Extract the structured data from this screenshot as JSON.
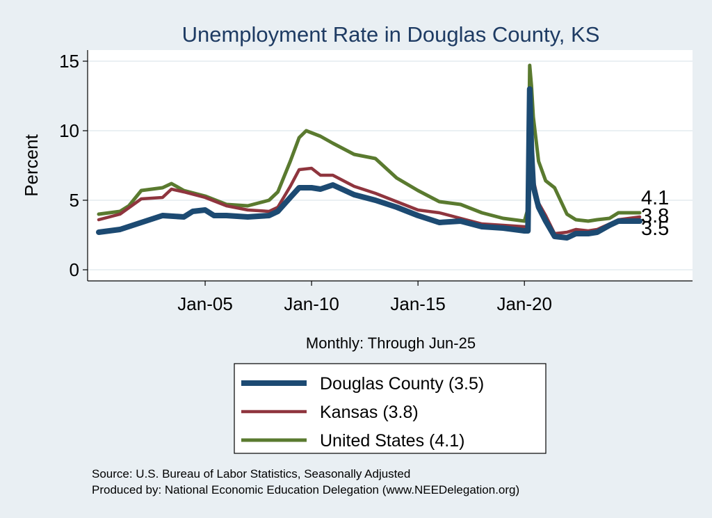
{
  "chart_data": {
    "type": "line",
    "title": "Unemployment Rate in Douglas  County, KS",
    "ylabel": "Percent",
    "xlabel": "Monthly: Through Jun-25",
    "ylim": [
      0,
      15
    ],
    "yticks": [
      "0",
      "5",
      "10",
      "15"
    ],
    "xticks": [
      {
        "date": "2005-01",
        "label": "Jan-05"
      },
      {
        "date": "2010-01",
        "label": "Jan-10"
      },
      {
        "date": "2015-01",
        "label": "Jan-15"
      },
      {
        "date": "2020-01",
        "label": "Jan-20"
      }
    ],
    "xrange": [
      "2000-01",
      "2025-06"
    ],
    "grid": true,
    "legend_position": "bottom",
    "series": [
      {
        "name": "Douglas  County (3.5)",
        "color": "#1c4a72",
        "end_label": "3.5",
        "points": [
          [
            "2000-01",
            2.7
          ],
          [
            "2001-01",
            2.9
          ],
          [
            "2002-01",
            3.4
          ],
          [
            "2003-01",
            3.9
          ],
          [
            "2004-01",
            3.8
          ],
          [
            "2004-06",
            4.2
          ],
          [
            "2005-01",
            4.3
          ],
          [
            "2005-06",
            3.9
          ],
          [
            "2006-01",
            3.9
          ],
          [
            "2007-01",
            3.8
          ],
          [
            "2008-01",
            3.9
          ],
          [
            "2008-06",
            4.2
          ],
          [
            "2009-01",
            5.2
          ],
          [
            "2009-06",
            5.9
          ],
          [
            "2010-01",
            5.9
          ],
          [
            "2010-06",
            5.8
          ],
          [
            "2011-01",
            6.1
          ],
          [
            "2012-01",
            5.4
          ],
          [
            "2013-01",
            5.0
          ],
          [
            "2014-01",
            4.5
          ],
          [
            "2015-01",
            3.9
          ],
          [
            "2016-01",
            3.4
          ],
          [
            "2017-01",
            3.5
          ],
          [
            "2018-01",
            3.1
          ],
          [
            "2019-01",
            3.0
          ],
          [
            "2020-01",
            2.8
          ],
          [
            "2020-03",
            2.8
          ],
          [
            "2020-04",
            13.0
          ],
          [
            "2020-05",
            8.5
          ],
          [
            "2020-06",
            6.0
          ],
          [
            "2020-09",
            4.5
          ],
          [
            "2021-01",
            3.5
          ],
          [
            "2021-06",
            2.4
          ],
          [
            "2022-01",
            2.3
          ],
          [
            "2022-06",
            2.6
          ],
          [
            "2023-01",
            2.6
          ],
          [
            "2023-06",
            2.7
          ],
          [
            "2024-01",
            3.2
          ],
          [
            "2024-06",
            3.5
          ],
          [
            "2025-06",
            3.5
          ]
        ]
      },
      {
        "name": "Kansas (3.8)",
        "color": "#8f353e",
        "end_label": "3.8",
        "points": [
          [
            "2000-01",
            3.6
          ],
          [
            "2001-01",
            4.0
          ],
          [
            "2002-01",
            5.1
          ],
          [
            "2003-01",
            5.2
          ],
          [
            "2003-06",
            5.8
          ],
          [
            "2004-01",
            5.6
          ],
          [
            "2005-01",
            5.2
          ],
          [
            "2006-01",
            4.6
          ],
          [
            "2007-01",
            4.3
          ],
          [
            "2008-01",
            4.2
          ],
          [
            "2008-06",
            4.5
          ],
          [
            "2009-01",
            6.0
          ],
          [
            "2009-06",
            7.2
          ],
          [
            "2010-01",
            7.3
          ],
          [
            "2010-06",
            6.8
          ],
          [
            "2011-01",
            6.8
          ],
          [
            "2012-01",
            6.0
          ],
          [
            "2013-01",
            5.5
          ],
          [
            "2014-01",
            4.9
          ],
          [
            "2015-01",
            4.3
          ],
          [
            "2016-01",
            4.1
          ],
          [
            "2017-01",
            3.7
          ],
          [
            "2018-01",
            3.3
          ],
          [
            "2019-01",
            3.2
          ],
          [
            "2020-01",
            3.1
          ],
          [
            "2020-03",
            3.1
          ],
          [
            "2020-04",
            11.2
          ],
          [
            "2020-05",
            8.0
          ],
          [
            "2020-06",
            6.5
          ],
          [
            "2020-09",
            4.8
          ],
          [
            "2021-01",
            3.9
          ],
          [
            "2021-06",
            2.6
          ],
          [
            "2022-01",
            2.7
          ],
          [
            "2022-06",
            2.9
          ],
          [
            "2023-01",
            2.8
          ],
          [
            "2023-06",
            2.9
          ],
          [
            "2024-01",
            3.3
          ],
          [
            "2024-06",
            3.6
          ],
          [
            "2025-06",
            3.8
          ]
        ]
      },
      {
        "name": "United States (4.1)",
        "color": "#5a7a2f",
        "end_label": "4.1",
        "points": [
          [
            "2000-01",
            4.0
          ],
          [
            "2001-01",
            4.2
          ],
          [
            "2001-06",
            4.6
          ],
          [
            "2002-01",
            5.7
          ],
          [
            "2003-01",
            5.9
          ],
          [
            "2003-06",
            6.2
          ],
          [
            "2004-01",
            5.7
          ],
          [
            "2005-01",
            5.3
          ],
          [
            "2006-01",
            4.7
          ],
          [
            "2007-01",
            4.6
          ],
          [
            "2008-01",
            5.0
          ],
          [
            "2008-06",
            5.6
          ],
          [
            "2009-01",
            7.8
          ],
          [
            "2009-06",
            9.5
          ],
          [
            "2009-10",
            10.0
          ],
          [
            "2010-06",
            9.6
          ],
          [
            "2011-01",
            9.1
          ],
          [
            "2012-01",
            8.3
          ],
          [
            "2013-01",
            8.0
          ],
          [
            "2014-01",
            6.6
          ],
          [
            "2015-01",
            5.7
          ],
          [
            "2016-01",
            4.9
          ],
          [
            "2017-01",
            4.7
          ],
          [
            "2018-01",
            4.1
          ],
          [
            "2019-01",
            3.7
          ],
          [
            "2020-01",
            3.5
          ],
          [
            "2020-03",
            4.4
          ],
          [
            "2020-04",
            14.7
          ],
          [
            "2020-05",
            13.2
          ],
          [
            "2020-06",
            11.0
          ],
          [
            "2020-09",
            7.8
          ],
          [
            "2021-01",
            6.4
          ],
          [
            "2021-06",
            5.9
          ],
          [
            "2022-01",
            4.0
          ],
          [
            "2022-06",
            3.6
          ],
          [
            "2023-01",
            3.5
          ],
          [
            "2023-06",
            3.6
          ],
          [
            "2024-01",
            3.7
          ],
          [
            "2024-06",
            4.1
          ],
          [
            "2025-06",
            4.1
          ]
        ]
      }
    ]
  },
  "source_line1": "Source: U.S. Bureau of Labor Statistics, Seasonally Adjusted",
  "source_line2": "Produced by: National Economic Education Delegation (www.NEEDelegation.org)"
}
